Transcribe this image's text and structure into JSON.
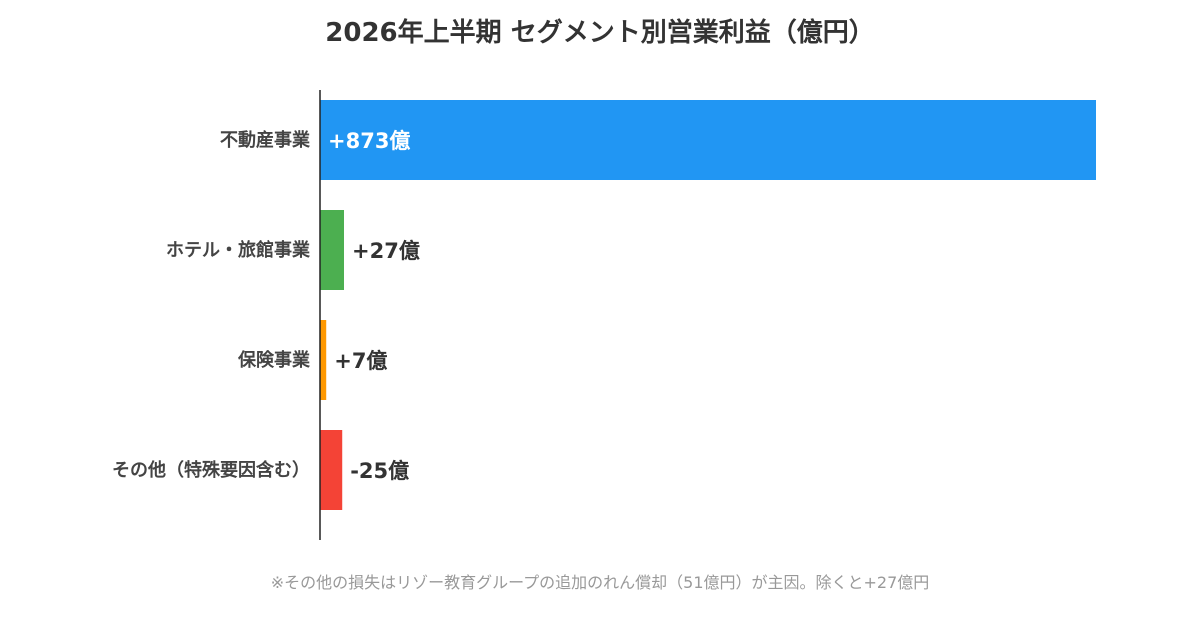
{
  "chart_data": {
    "type": "bar",
    "orientation": "horizontal",
    "title": "2026年上半期 セグメント別営業利益（億円）",
    "xlabel": "",
    "ylabel": "",
    "categories": [
      "不動産事業",
      "ホテル・旅館事業",
      "保険事業",
      "その他（特殊要因含む）"
    ],
    "values": [
      873,
      27,
      7,
      -25
    ],
    "value_labels": [
      "+873億",
      "+27億",
      "+7億",
      "-25億"
    ],
    "colors": [
      "#2196F3",
      "#4CAF50",
      "#FF9800",
      "#F44336"
    ],
    "grid": false,
    "legend": "none"
  },
  "footnote": "※その他の損失はリゾー教育グループの追加のれん償却（51億円）が主因。除くと+27億円"
}
